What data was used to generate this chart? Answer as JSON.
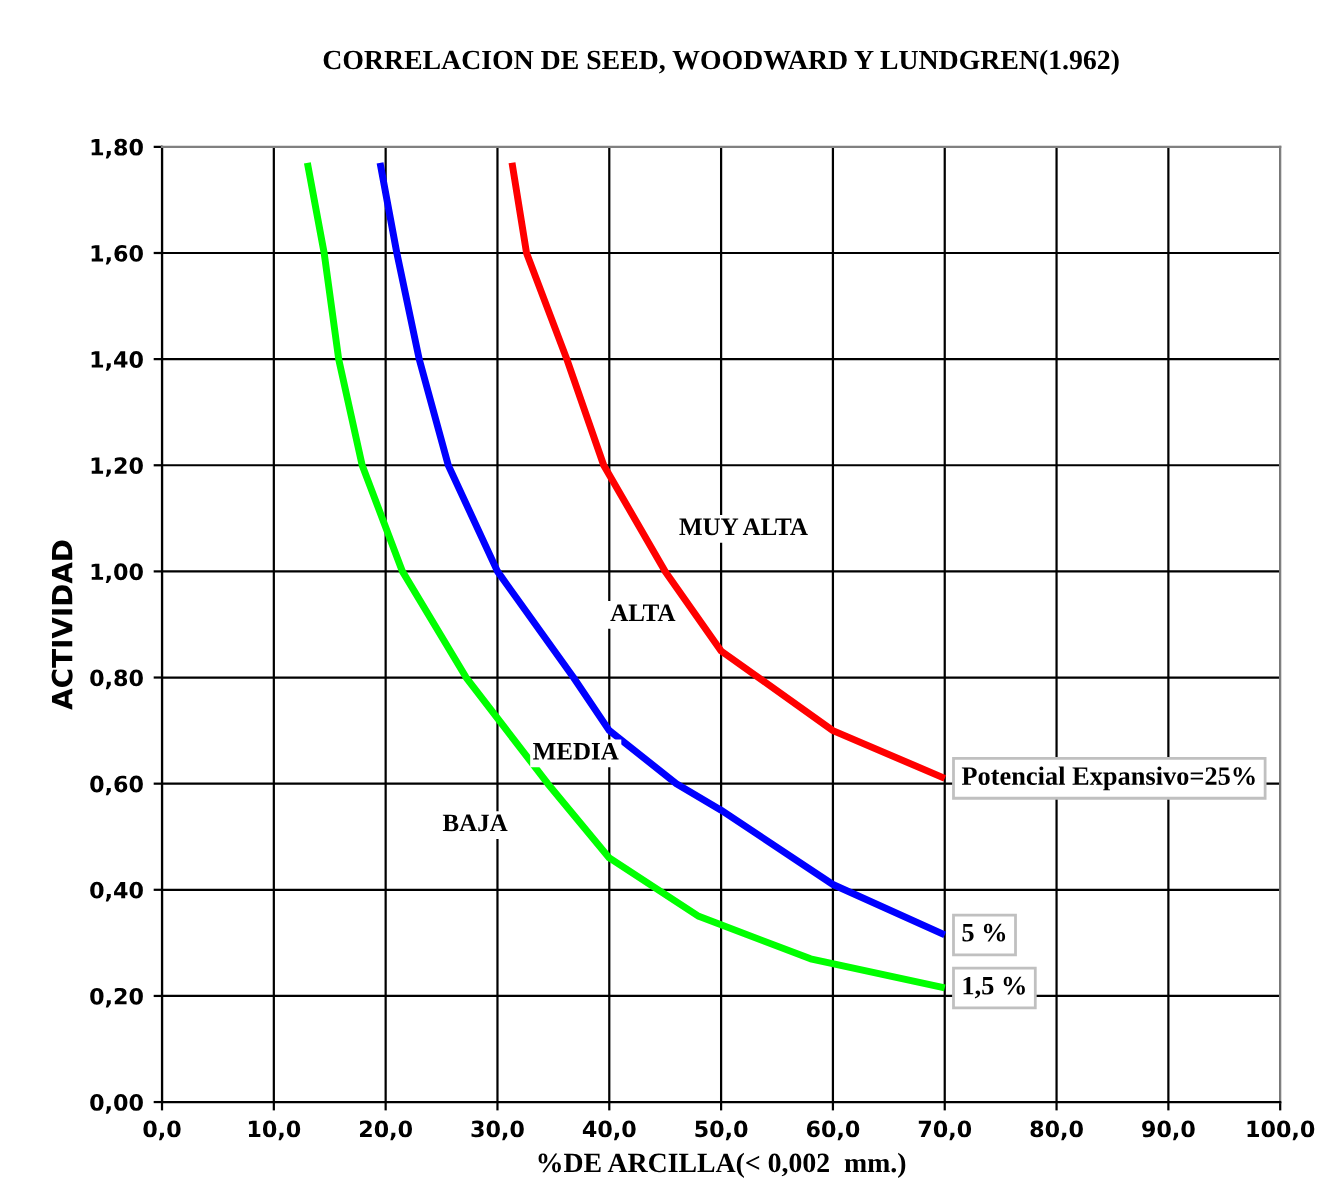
{
  "chart_data": {
    "type": "line",
    "title": "CORRELACION DE SEED, WOODWARD Y LUNDGREN(1.962)",
    "xlabel": "%DE ARCILLA(< 0,002  mm.)",
    "ylabel": "ACTIVIDAD",
    "xlim": [
      0,
      100
    ],
    "ylim": [
      0,
      1.8
    ],
    "xticks": [
      {
        "value": 0,
        "label": "0,0"
      },
      {
        "value": 10,
        "label": "10,0"
      },
      {
        "value": 20,
        "label": "20,0"
      },
      {
        "value": 30,
        "label": "30,0"
      },
      {
        "value": 40,
        "label": "40,0"
      },
      {
        "value": 50,
        "label": "50,0"
      },
      {
        "value": 60,
        "label": "60,0"
      },
      {
        "value": 70,
        "label": "70,0"
      },
      {
        "value": 80,
        "label": "80,0"
      },
      {
        "value": 90,
        "label": "90,0"
      },
      {
        "value": 100,
        "label": "100,0"
      }
    ],
    "yticks": [
      {
        "value": 0,
        "label": "0,00"
      },
      {
        "value": 0.2,
        "label": "0,20"
      },
      {
        "value": 0.4,
        "label": "0,40"
      },
      {
        "value": 0.6,
        "label": "0,60"
      },
      {
        "value": 0.8,
        "label": "0,80"
      },
      {
        "value": 1.0,
        "label": "1,00"
      },
      {
        "value": 1.2,
        "label": "1,20"
      },
      {
        "value": 1.4,
        "label": "1,40"
      },
      {
        "value": 1.6,
        "label": "1,60"
      },
      {
        "value": 1.8,
        "label": "1,80"
      }
    ],
    "grid": true,
    "marker": "none",
    "line_style": "solid",
    "series": [
      {
        "name": "Potencial Expansivo=25%",
        "color": "#ff0000",
        "x": [
          31.3,
          32.6,
          36.2,
          39.5,
          45,
          50,
          60,
          70
        ],
        "values": [
          1.77,
          1.6,
          1.4,
          1.2,
          1.0,
          0.85,
          0.7,
          0.61
        ]
      },
      {
        "name": "5 %",
        "color": "#0000ff",
        "x": [
          19.5,
          21.0,
          23.0,
          25.6,
          30.0,
          36.8,
          40,
          46,
          50,
          60,
          70
        ],
        "values": [
          1.77,
          1.6,
          1.4,
          1.2,
          1.0,
          0.8,
          0.7,
          0.6,
          0.55,
          0.41,
          0.315
        ]
      },
      {
        "name": "1,5 %",
        "color": "#00ff00",
        "x": [
          13.0,
          14.5,
          15.8,
          17.9,
          21.5,
          27.2,
          34.5,
          40,
          48,
          58,
          70
        ],
        "values": [
          1.77,
          1.6,
          1.4,
          1.2,
          1.0,
          0.8,
          0.6,
          0.46,
          0.35,
          0.27,
          0.215
        ]
      }
    ],
    "annotations": [
      "MUY ALTA",
      "ALTA",
      "MEDIA",
      "BAJA"
    ]
  }
}
